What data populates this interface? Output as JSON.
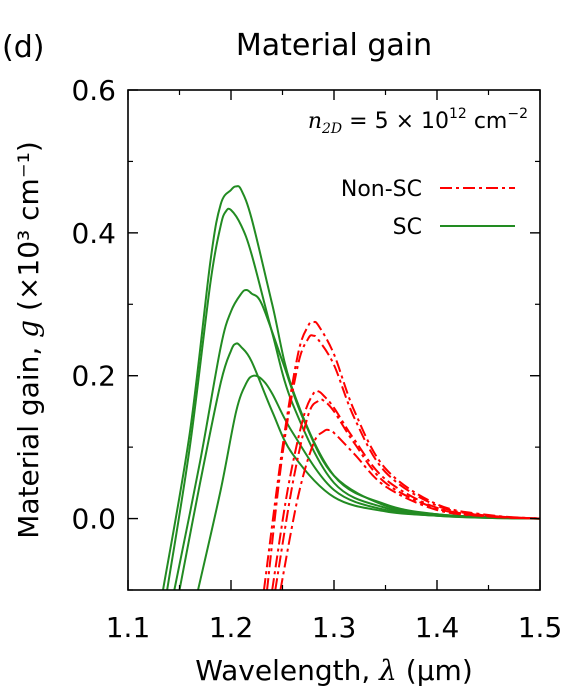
{
  "panel_label": "(d)",
  "chart_data": {
    "type": "line",
    "title": "Material gain",
    "xlabel_text": "Wavelength, ",
    "xlabel_symbol": "λ",
    "xlabel_unit": " (μm)",
    "ylabel_text": "Material gain, ",
    "ylabel_symbol": "g",
    "ylabel_unit": " (×10³ cm⁻¹)",
    "xlim": [
      1.1,
      1.5
    ],
    "ylim": [
      -0.1,
      0.6
    ],
    "xticks": [
      1.1,
      1.2,
      1.3,
      1.4,
      1.5
    ],
    "xtick_labels": [
      "1.1",
      "1.2",
      "1.3",
      "1.4",
      "1.5"
    ],
    "yticks": [
      0.0,
      0.2,
      0.4,
      0.6
    ],
    "ytick_labels": [
      "0.0",
      "0.2",
      "0.4",
      "0.6"
    ],
    "annotation": {
      "var_n": "n",
      "var_sub": "2D",
      "equals": " = 5 × 10",
      "exp": "12",
      "unit": " cm",
      "unit_exp": "−2"
    },
    "legend": {
      "placement": "upper-right",
      "entries": [
        {
          "label": "Non-SC",
          "color": "#ff0000",
          "style": "dash-dot"
        },
        {
          "label": "SC",
          "color": "#228b22",
          "style": "solid"
        }
      ]
    },
    "grid": false,
    "series": [
      {
        "group": "SC",
        "color": "#228b22",
        "style": "solid",
        "x": [
          1.134,
          1.16,
          1.18,
          1.19,
          1.2,
          1.205,
          1.21,
          1.22,
          1.24,
          1.26,
          1.3,
          1.35,
          1.4,
          1.45,
          1.5
        ],
        "y": [
          -0.1,
          0.12,
          0.36,
          0.44,
          0.46,
          0.465,
          0.46,
          0.42,
          0.3,
          0.18,
          0.06,
          0.02,
          0.006,
          0.002,
          0.0
        ]
      },
      {
        "group": "SC",
        "color": "#228b22",
        "style": "solid",
        "x": [
          1.138,
          1.16,
          1.18,
          1.19,
          1.195,
          1.2,
          1.21,
          1.22,
          1.24,
          1.26,
          1.3,
          1.35,
          1.4,
          1.45,
          1.5
        ],
        "y": [
          -0.1,
          0.1,
          0.33,
          0.41,
          0.43,
          0.432,
          0.41,
          0.37,
          0.26,
          0.16,
          0.05,
          0.015,
          0.005,
          0.002,
          0.0
        ]
      },
      {
        "group": "SC",
        "color": "#228b22",
        "style": "solid",
        "x": [
          1.145,
          1.17,
          1.19,
          1.2,
          1.21,
          1.215,
          1.22,
          1.23,
          1.25,
          1.27,
          1.3,
          1.35,
          1.4,
          1.45,
          1.5
        ],
        "y": [
          -0.1,
          0.08,
          0.24,
          0.29,
          0.315,
          0.32,
          0.315,
          0.3,
          0.22,
          0.14,
          0.06,
          0.018,
          0.006,
          0.002,
          0.0
        ]
      },
      {
        "group": "SC",
        "color": "#228b22",
        "style": "solid",
        "x": [
          1.15,
          1.17,
          1.19,
          1.2,
          1.205,
          1.21,
          1.22,
          1.24,
          1.26,
          1.3,
          1.35,
          1.4,
          1.45,
          1.5
        ],
        "y": [
          -0.1,
          0.05,
          0.19,
          0.235,
          0.245,
          0.24,
          0.22,
          0.15,
          0.09,
          0.03,
          0.01,
          0.004,
          0.001,
          0.0
        ]
      },
      {
        "group": "SC",
        "color": "#228b22",
        "style": "solid",
        "x": [
          1.168,
          1.19,
          1.205,
          1.215,
          1.222,
          1.23,
          1.24,
          1.26,
          1.3,
          1.35,
          1.4,
          1.45,
          1.5
        ],
        "y": [
          -0.1,
          0.04,
          0.15,
          0.19,
          0.2,
          0.195,
          0.175,
          0.12,
          0.04,
          0.012,
          0.004,
          0.001,
          0.0
        ]
      },
      {
        "group": "Non-SC",
        "color": "#ff0000",
        "style": "dash-dot",
        "x": [
          1.232,
          1.25,
          1.265,
          1.275,
          1.28,
          1.285,
          1.3,
          1.32,
          1.35,
          1.4,
          1.45,
          1.5
        ],
        "y": [
          -0.1,
          0.1,
          0.23,
          0.27,
          0.275,
          0.27,
          0.23,
          0.15,
          0.07,
          0.02,
          0.005,
          0.0
        ]
      },
      {
        "group": "Non-SC",
        "color": "#ff0000",
        "style": "dash-dot",
        "x": [
          1.235,
          1.25,
          1.265,
          1.275,
          1.28,
          1.285,
          1.3,
          1.32,
          1.35,
          1.4,
          1.45,
          1.5
        ],
        "y": [
          -0.1,
          0.09,
          0.215,
          0.252,
          0.256,
          0.25,
          0.215,
          0.14,
          0.065,
          0.018,
          0.004,
          0.0
        ]
      },
      {
        "group": "Non-SC",
        "color": "#ff0000",
        "style": "dash-dot",
        "x": [
          1.24,
          1.255,
          1.27,
          1.28,
          1.285,
          1.29,
          1.3,
          1.32,
          1.35,
          1.4,
          1.45,
          1.5
        ],
        "y": [
          -0.1,
          0.04,
          0.14,
          0.175,
          0.178,
          0.172,
          0.155,
          0.11,
          0.055,
          0.015,
          0.004,
          0.0
        ]
      },
      {
        "group": "Non-SC",
        "color": "#ff0000",
        "style": "dash-dot",
        "x": [
          1.243,
          1.26,
          1.275,
          1.285,
          1.29,
          1.3,
          1.32,
          1.35,
          1.4,
          1.45,
          1.5
        ],
        "y": [
          -0.1,
          0.05,
          0.145,
          0.165,
          0.165,
          0.15,
          0.105,
          0.05,
          0.014,
          0.003,
          0.0
        ]
      },
      {
        "group": "Non-SC",
        "color": "#ff0000",
        "style": "dash-dot",
        "x": [
          1.248,
          1.265,
          1.28,
          1.29,
          1.295,
          1.3,
          1.32,
          1.35,
          1.4,
          1.45,
          1.5
        ],
        "y": [
          -0.1,
          0.03,
          0.105,
          0.122,
          0.124,
          0.12,
          0.09,
          0.045,
          0.012,
          0.003,
          0.0
        ]
      }
    ]
  }
}
